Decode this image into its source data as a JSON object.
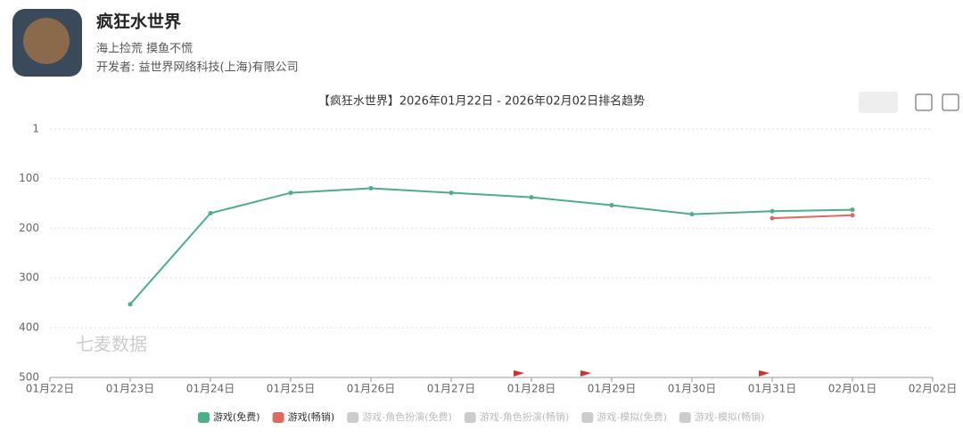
{
  "header": {
    "title": "疯狂水世界",
    "subtitle": "海上捡荒 摸鱼不慌",
    "developer": "开发者: 益世界网络科技(上海)有限公司"
  },
  "watermark": "七麦数据",
  "chart_data": {
    "type": "line",
    "title": "【疯狂水世界】2026年01月22日 - 2026年02月02日排名趋势",
    "categories": [
      "01月22日",
      "01月23日",
      "01月24日",
      "01月25日",
      "01月26日",
      "01月27日",
      "01月28日",
      "01月29日",
      "01月30日",
      "01月31日",
      "02月01日",
      "02月02日"
    ],
    "series": [
      {
        "name": "游戏(免费)",
        "color": "#4caf87",
        "values": [
          null,
          353,
          170,
          129,
          120,
          129,
          138,
          154,
          172,
          166,
          163,
          null
        ]
      },
      {
        "name": "游戏(畅销)",
        "color": "#e0685e",
        "values": [
          null,
          null,
          null,
          null,
          null,
          null,
          null,
          null,
          null,
          180,
          174,
          null
        ]
      }
    ],
    "inactive_legend": [
      "游戏-角色扮演(免费)",
      "游戏-角色扮演(畅销)",
      "游戏-模拟(免费)",
      "游戏-模拟(畅销)"
    ],
    "inactive_color": "#cccccc",
    "ylim": [
      1,
      500
    ],
    "yticks": [
      1,
      100,
      200,
      300,
      400,
      500
    ],
    "y_inverted": true,
    "grid": true
  }
}
